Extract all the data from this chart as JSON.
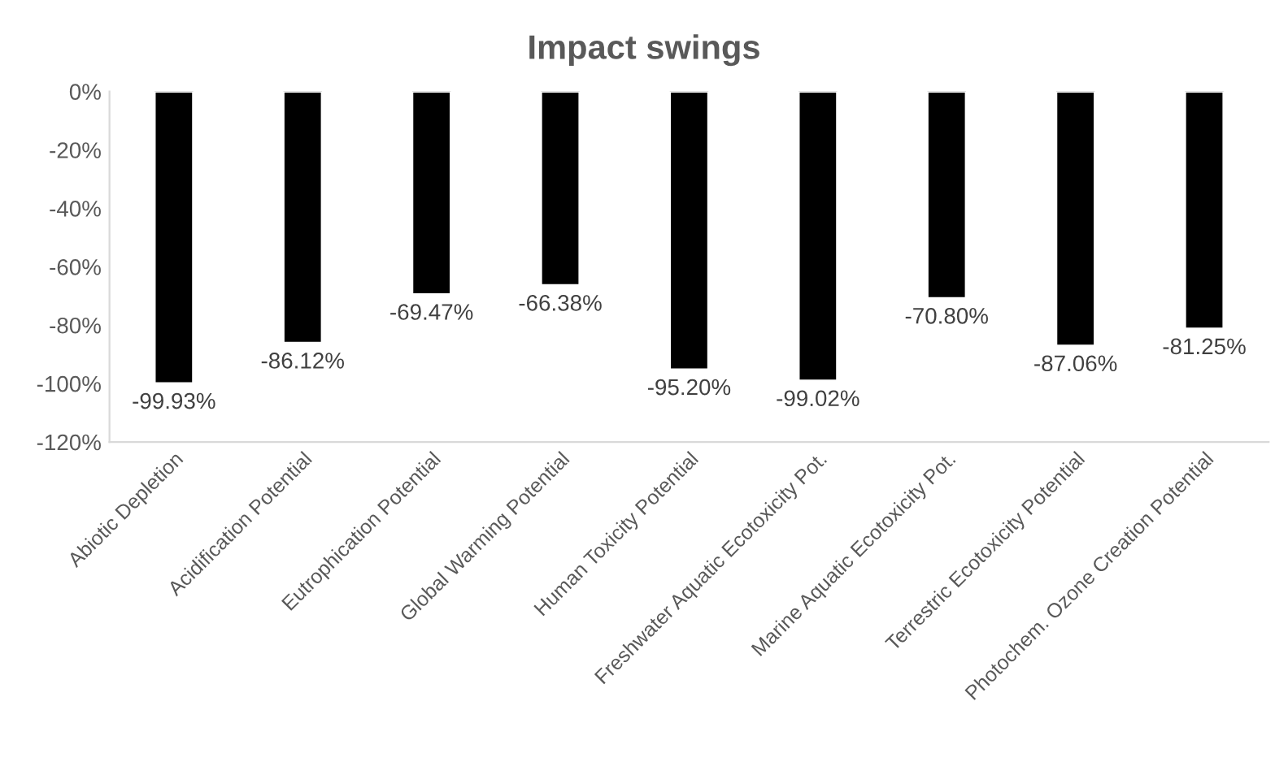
{
  "chart_data": {
    "type": "bar",
    "title": "Impact swings",
    "categories": [
      "Abiotic Depletion",
      "Acidification Potential",
      "Eutrophication Potential",
      "Global Warming Potential",
      "Human Toxicity Potential",
      "Freshwater Aquatic Ecotoxicity Pot.",
      "Marine Aquatic Ecotoxicity Pot.",
      "Terrestric Ecotoxicity Potential",
      "Photochem. Ozone Creation Potential"
    ],
    "values": [
      -99.93,
      -86.12,
      -69.47,
      -66.38,
      -95.2,
      -99.02,
      -70.8,
      -87.06,
      -81.25
    ],
    "value_labels": [
      "-99.93%",
      "-86.12%",
      "-69.47%",
      "-66.38%",
      "-95.20%",
      "-99.02%",
      "-70.80%",
      "-87.06%",
      "-81.25%"
    ],
    "color": "#000000",
    "ylim": [
      -120,
      0
    ],
    "yticks": [
      {
        "value": 0,
        "label": "0%"
      },
      {
        "value": -20,
        "label": "-20%"
      },
      {
        "value": -40,
        "label": "-40%"
      },
      {
        "value": -60,
        "label": "-60%"
      },
      {
        "value": -80,
        "label": "-80%"
      },
      {
        "value": -100,
        "label": "-100%"
      },
      {
        "value": -120,
        "label": "-120%"
      }
    ],
    "grid": false
  }
}
